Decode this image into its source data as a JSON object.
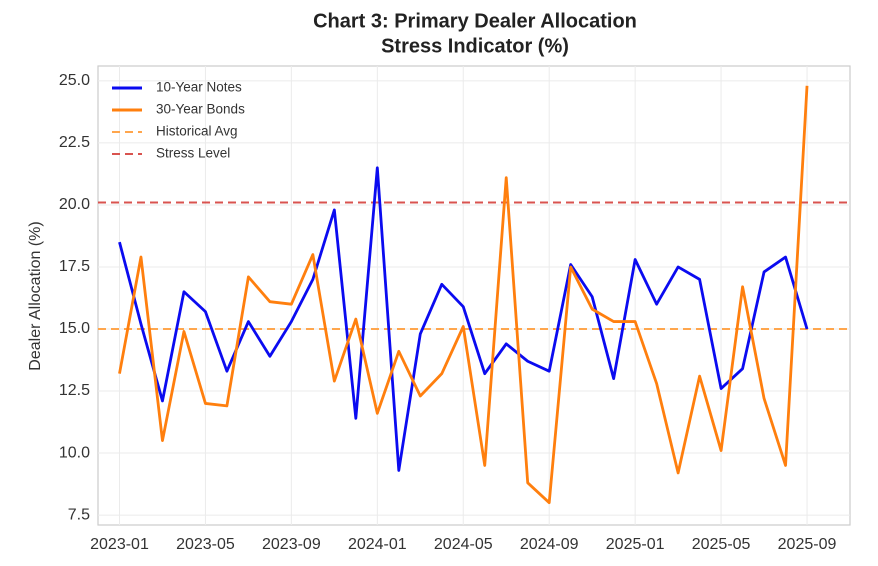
{
  "chart_data": {
    "type": "line",
    "title_lines": [
      "Chart 3: Primary Dealer Allocation",
      "Stress Indicator (%)"
    ],
    "ylabel": "Dealer Allocation (%)",
    "x": [
      "2023-01",
      "2023-02",
      "2023-03",
      "2023-04",
      "2023-05",
      "2023-06",
      "2023-07",
      "2023-08",
      "2023-09",
      "2023-10",
      "2023-11",
      "2023-12",
      "2024-01",
      "2024-02",
      "2024-03",
      "2024-04",
      "2024-05",
      "2024-06",
      "2024-07",
      "2024-08",
      "2024-09",
      "2024-10",
      "2024-11",
      "2024-12",
      "2025-01",
      "2025-02",
      "2025-03",
      "2025-04",
      "2025-05",
      "2025-06",
      "2025-07",
      "2025-08",
      "2025-09"
    ],
    "series": [
      {
        "name": "10-Year Notes",
        "color": "#0b0bf0",
        "values": [
          18.5,
          15.2,
          12.1,
          16.5,
          15.7,
          13.3,
          15.3,
          13.9,
          15.3,
          17.0,
          19.8,
          11.4,
          21.5,
          9.3,
          14.8,
          16.8,
          15.9,
          13.2,
          14.4,
          13.7,
          13.3,
          17.6,
          16.3,
          13.0,
          17.8,
          16.0,
          17.5,
          17.0,
          12.6,
          13.4,
          17.3,
          17.9,
          15.0
        ]
      },
      {
        "name": "30-Year Bonds",
        "color": "#ff7f0e",
        "values": [
          13.2,
          17.9,
          10.5,
          14.9,
          12.0,
          11.9,
          17.1,
          16.1,
          16.0,
          18.0,
          12.9,
          15.4,
          11.6,
          14.1,
          12.3,
          13.2,
          15.1,
          9.5,
          21.1,
          8.8,
          8.0,
          17.5,
          15.8,
          15.3,
          15.3,
          12.8,
          9.2,
          13.1,
          10.1,
          16.7,
          12.2,
          9.5,
          24.8
        ]
      }
    ],
    "reference_lines": [
      {
        "name": "Historical Avg",
        "value": 15.0,
        "color": "#ffa64d"
      },
      {
        "name": "Stress Level",
        "value": 20.1,
        "color": "#d9534f"
      }
    ],
    "xlim": [
      "2022-12",
      "2025-11"
    ],
    "xticks": [
      "2023-01",
      "2023-05",
      "2023-09",
      "2024-01",
      "2024-05",
      "2024-09",
      "2025-01",
      "2025-05",
      "2025-09"
    ],
    "ylim": [
      7.1,
      25.6
    ],
    "yticks": [
      7.5,
      {
        "value": 10,
        "label": "10.0"
      },
      12.5,
      {
        "value": 15,
        "label": "15.0"
      },
      17.5,
      {
        "value": 20,
        "label": "20.0"
      },
      22.5,
      {
        "value": 25,
        "label": "25.0"
      }
    ],
    "grid": true,
    "legend": "upper left"
  }
}
